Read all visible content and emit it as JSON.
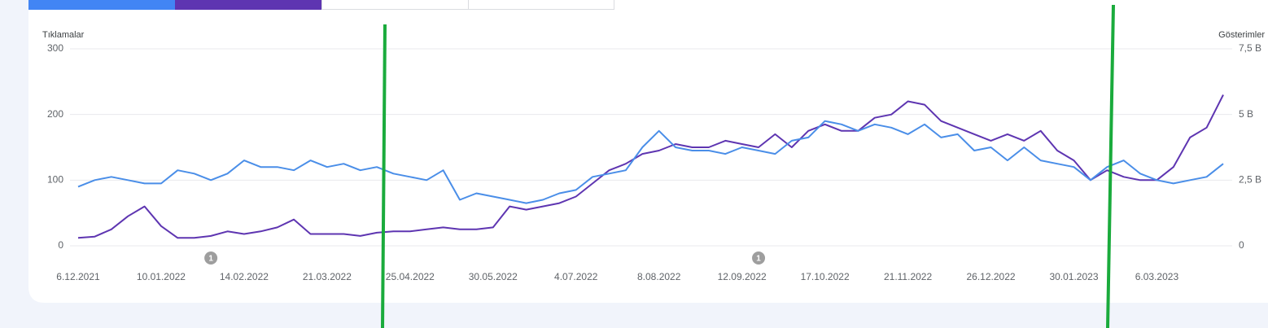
{
  "chart_data": {
    "type": "line",
    "y_label": "Tıklamalar",
    "y2_label": "Gösterimler",
    "x": [
      "6.12.2021",
      "13.12.2021",
      "20.12.2021",
      "27.12.2021",
      "3.01.2022",
      "10.01.2022",
      "17.01.2022",
      "24.01.2022",
      "31.01.2022",
      "7.02.2022",
      "14.02.2022",
      "21.02.2022",
      "28.02.2022",
      "7.03.2022",
      "14.03.2022",
      "21.03.2022",
      "28.03.2022",
      "4.04.2022",
      "11.04.2022",
      "18.04.2022",
      "25.04.2022",
      "2.05.2022",
      "9.05.2022",
      "16.05.2022",
      "23.05.2022",
      "30.05.2022",
      "6.06.2022",
      "13.06.2022",
      "20.06.2022",
      "27.06.2022",
      "4.07.2022",
      "11.07.2022",
      "18.07.2022",
      "25.07.2022",
      "1.08.2022",
      "8.08.2022",
      "15.08.2022",
      "22.08.2022",
      "29.08.2022",
      "5.09.2022",
      "12.09.2022",
      "19.09.2022",
      "26.09.2022",
      "3.10.2022",
      "10.10.2022",
      "17.10.2022",
      "24.10.2022",
      "31.10.2022",
      "7.11.2022",
      "14.11.2022",
      "21.11.2022",
      "28.11.2022",
      "5.12.2022",
      "12.12.2022",
      "19.12.2022",
      "26.12.2022",
      "2.01.2023",
      "9.01.2023",
      "16.01.2023",
      "23.01.2023",
      "30.01.2023",
      "6.02.2023",
      "13.02.2023",
      "20.02.2023",
      "27.02.2023",
      "6.03.2023",
      "13.03.2023",
      "20.03.2023",
      "27.03.2023",
      "3.04.2023"
    ],
    "series": [
      {
        "name": "Tıklamalar",
        "color": "#4a8ee8",
        "values": [
          90,
          100,
          105,
          100,
          95,
          95,
          115,
          110,
          100,
          110,
          130,
          120,
          120,
          115,
          130,
          120,
          125,
          115,
          120,
          110,
          105,
          100,
          115,
          70,
          80,
          75,
          70,
          65,
          70,
          80,
          85,
          105,
          110,
          115,
          150,
          175,
          150,
          145,
          145,
          140,
          150,
          145,
          140,
          160,
          165,
          190,
          185,
          175,
          185,
          180,
          170,
          185,
          165,
          170,
          145,
          150,
          130,
          150,
          130,
          125,
          120,
          100,
          120,
          130,
          110,
          100,
          95,
          100,
          105,
          125
        ]
      },
      {
        "name": "Gösterimler",
        "color": "#5e35b1",
        "axis": "y2",
        "values": [
          300,
          350,
          625,
          1125,
          1500,
          750,
          300,
          300,
          375,
          550,
          450,
          550,
          700,
          1000,
          450,
          450,
          450,
          375,
          500,
          550,
          550,
          625,
          700,
          625,
          625,
          700,
          1500,
          1375,
          1500,
          1625,
          1875,
          2375,
          2875,
          3125,
          3500,
          3625,
          3875,
          3750,
          3750,
          4000,
          3875,
          3750,
          4250,
          3750,
          4375,
          4625,
          4375,
          4375,
          4875,
          5000,
          5500,
          5375,
          4750,
          4500,
          4250,
          4000,
          4250,
          4000,
          4375,
          3625,
          3250,
          2500,
          2875,
          2625,
          2500,
          2500,
          3000,
          4125,
          4500,
          5750
        ]
      }
    ],
    "ylim": [
      0,
      300
    ],
    "yticks": [
      0,
      100,
      200,
      300
    ],
    "y2lim": [
      0,
      7500
    ],
    "y2ticks": [
      0,
      {
        "value": 2500,
        "label": "2,5 B"
      },
      {
        "value": 5000,
        "label": "5 B"
      },
      {
        "value": 7500,
        "label": "7,5 B"
      }
    ],
    "xticks": [
      "6.12.2021",
      "10.01.2022",
      "14.02.2022",
      "21.03.2022",
      "25.04.2022",
      "30.05.2022",
      "4.07.2022",
      "8.08.2022",
      "12.09.2022",
      "17.10.2022",
      "21.11.2022",
      "26.12.2022",
      "30.01.2023",
      "6.03.2023"
    ],
    "annotations": [
      {
        "x": "31.01.2022",
        "label": "1"
      },
      {
        "x": "19.09.2022",
        "label": "1"
      }
    ],
    "grid": true
  }
}
